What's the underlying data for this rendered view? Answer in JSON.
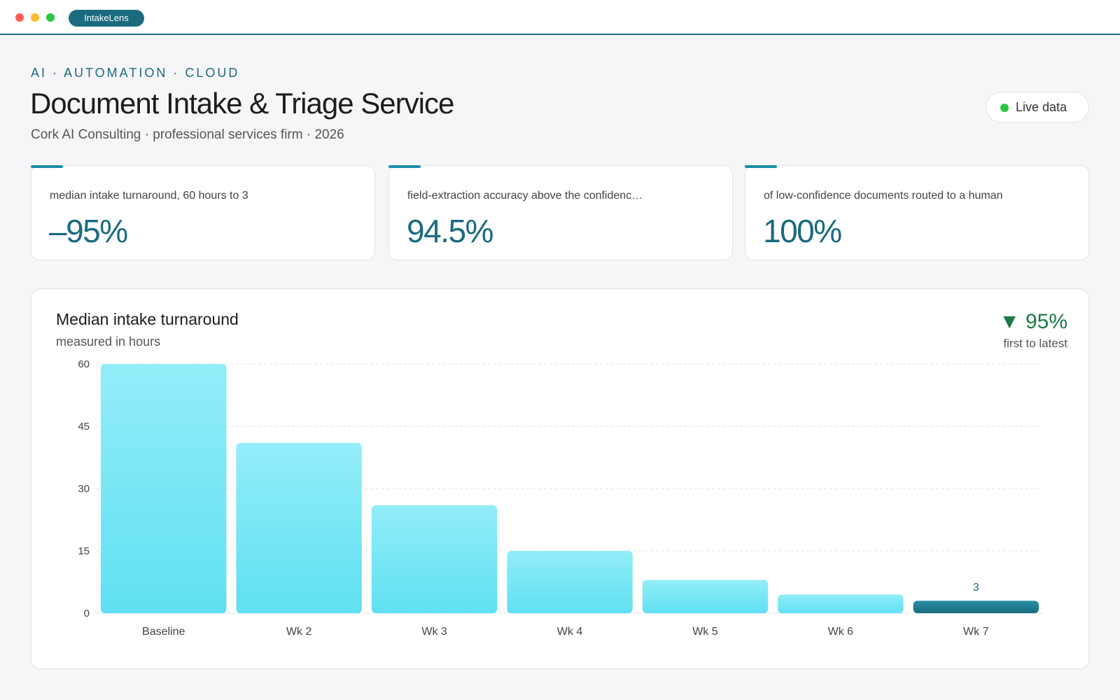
{
  "window": {
    "app_name": "IntakeLens"
  },
  "header": {
    "eyebrow": "AI · AUTOMATION · CLOUD",
    "title": "Document Intake & Triage Service",
    "subtitle": "Cork AI Consulting · professional services firm · 2026",
    "live_label": "Live data"
  },
  "kpis": [
    {
      "label": "median intake turnaround, 60 hours to 3",
      "value": "–95%"
    },
    {
      "label": "field-extraction accuracy above the confidenc…",
      "value": "94.5%"
    },
    {
      "label": "of low-confidence documents routed to a human",
      "value": "100%"
    }
  ],
  "chart": {
    "title": "Median intake turnaround",
    "subtitle": "measured in hours",
    "delta_arrow": "▼",
    "delta_value": "95%",
    "delta_caption": "first to latest"
  },
  "colors": {
    "accent": "#1a6b80",
    "bar_top": "#93edf8",
    "bar_bottom": "#5fe0f2",
    "highlight_top": "#2a8ea6",
    "highlight_bottom": "#1a6b80",
    "positive": "#1e7a45"
  },
  "chart_data": {
    "type": "bar",
    "categories": [
      "Baseline",
      "Wk 2",
      "Wk 3",
      "Wk 4",
      "Wk 5",
      "Wk 6",
      "Wk 7"
    ],
    "values": [
      60,
      41,
      26,
      15,
      8,
      4.5,
      3
    ],
    "data_labels": [
      "",
      "",
      "",
      "",
      "",
      "",
      "3"
    ],
    "highlight_index": 6,
    "title": "Median intake turnaround",
    "ylabel": "measured in hours",
    "ylim": [
      0,
      60
    ],
    "yticks": [
      0,
      15,
      30,
      45,
      60
    ],
    "grid": true
  }
}
